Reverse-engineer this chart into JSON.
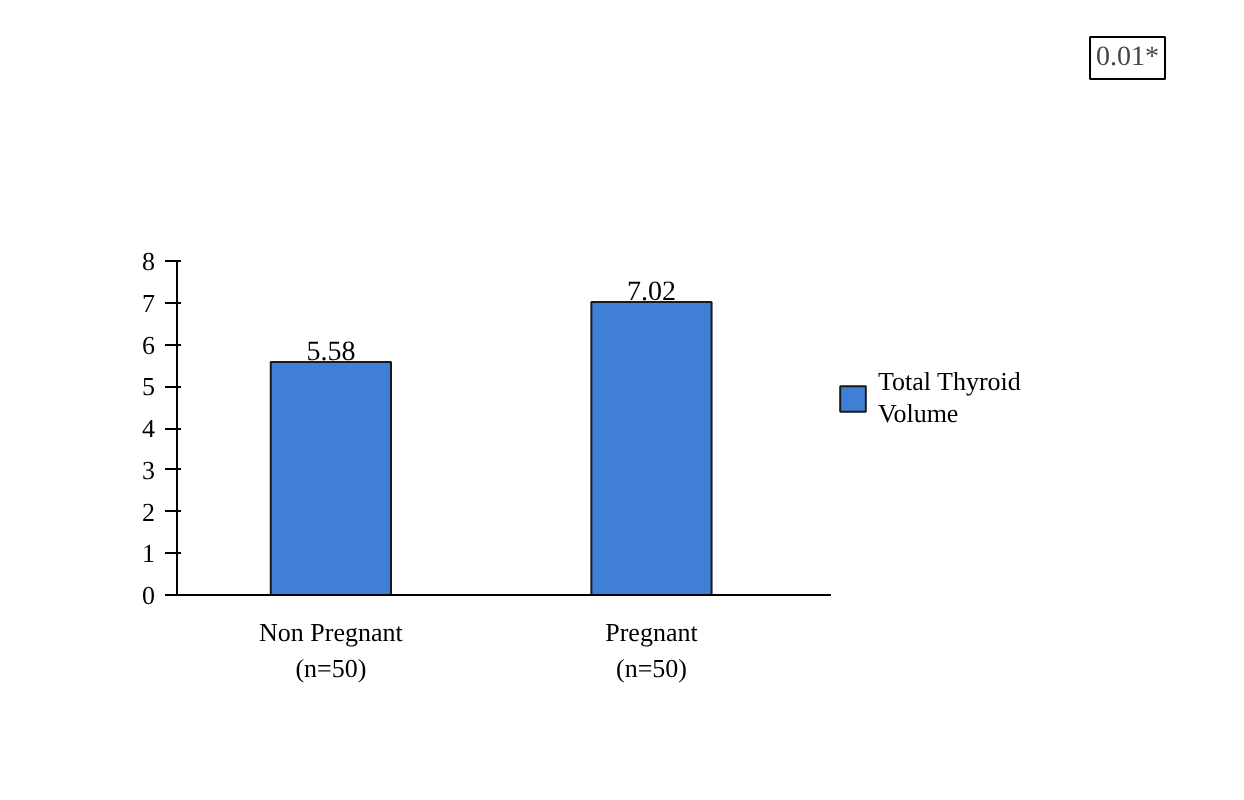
{
  "chart_data": {
    "type": "bar",
    "categories": [
      "Non Pregnant\n(n=50)",
      "Pregnant\n(n=50)"
    ],
    "series": [
      {
        "name": "Total Thyroid\nVolume",
        "color": "#3f7fd6",
        "values": [
          5.58,
          7.02
        ]
      }
    ],
    "ylim": [
      0,
      8
    ],
    "yticks": [
      0,
      1,
      2,
      3,
      4,
      5,
      6,
      7,
      8
    ],
    "data_labels": true,
    "grid": false,
    "legend": "right",
    "annotations": [
      "0.01*"
    ]
  }
}
